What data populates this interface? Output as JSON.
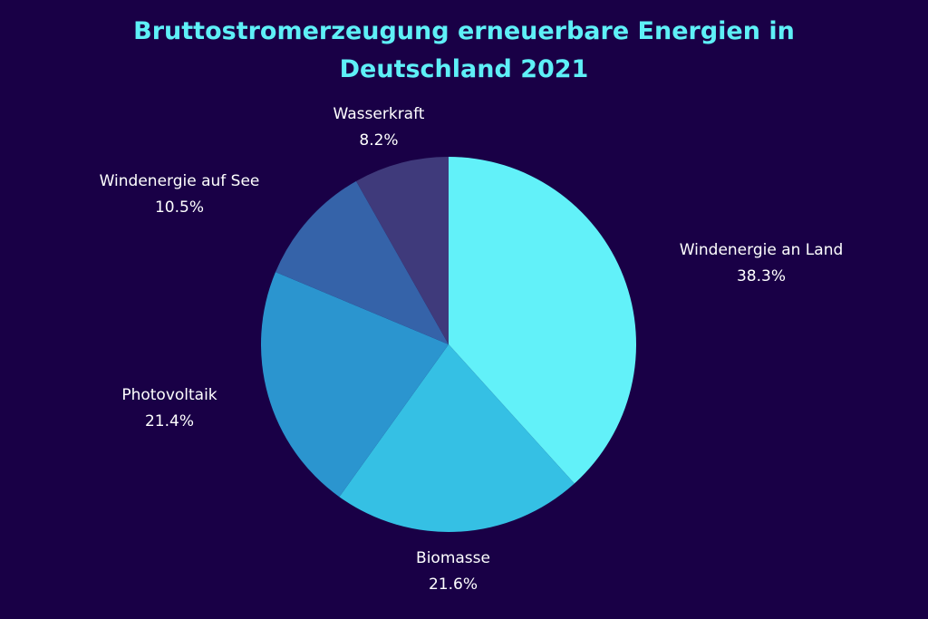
{
  "chart_data": {
    "type": "pie",
    "title_lines": [
      "Bruttostromerzeugung erneuerbare Energien in",
      "Deutschland 2021"
    ],
    "unit": "%",
    "start": "top",
    "direction": "clockwise",
    "slices": [
      {
        "label": "Windenergie an Land",
        "value": 38.3,
        "display": "38.3%",
        "color": "#62f1f9"
      },
      {
        "label": "Biomasse",
        "value": 21.6,
        "display": "21.6%",
        "color": "#35c0e4"
      },
      {
        "label": "Photovoltaik",
        "value": 21.4,
        "display": "21.4%",
        "color": "#2b95cf"
      },
      {
        "label": "Windenergie auf See",
        "value": 10.5,
        "display": "10.5%",
        "color": "#3563a9"
      },
      {
        "label": "Wasserkraft",
        "value": 8.2,
        "display": "8.2%",
        "color": "#3f3a7b"
      }
    ]
  },
  "colors": {
    "background": "#190046",
    "title": "#5ef0f7",
    "labels": "#ffffff"
  }
}
